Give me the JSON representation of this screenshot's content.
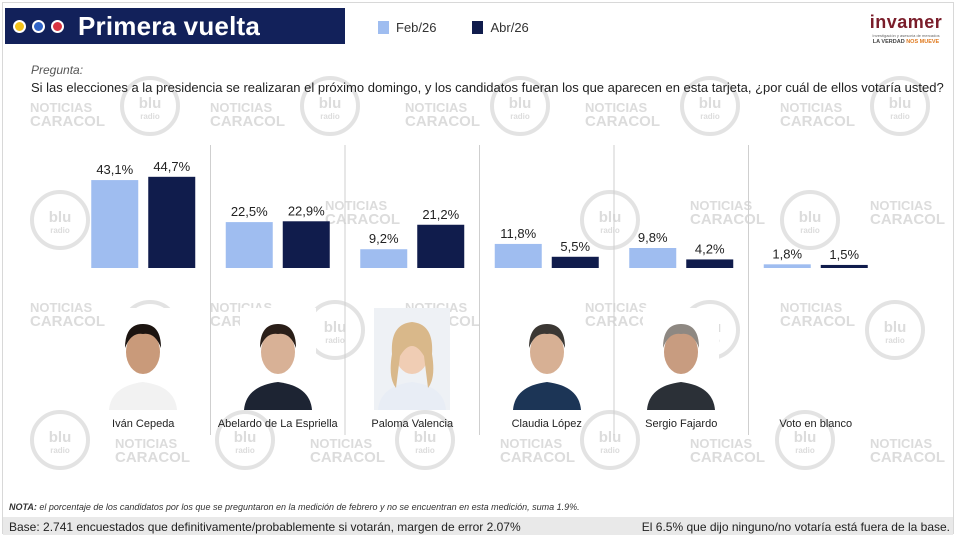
{
  "header": {
    "title": "Primera vuelta",
    "dot_colors": [
      "#f3c21a",
      "#2f63c7",
      "#d9333f"
    ]
  },
  "logo": {
    "name": "invamer",
    "subtitle": "Investigación y asesoría de mercados",
    "tagline_a": "LA VERDAD",
    "tagline_b": "NOS MUEVE"
  },
  "question": {
    "label": "Pregunta:",
    "text": "Si las elecciones a la presidencia se realizaran el próximo domingo, y los candidatos fueran los que aparecen en esta tarjeta, ¿por cuál de ellos votaría usted?"
  },
  "colors": {
    "feb": "#9fbdf0",
    "abr": "#101c4c",
    "title_bg": "#12215a"
  },
  "chart_data": {
    "type": "bar",
    "categories": [
      "Iván Cepeda",
      "Abelardo de La Espriella",
      "Paloma Valencia",
      "Claudia López",
      "Sergio Fajardo",
      "Voto en blanco"
    ],
    "series": [
      {
        "name": "Feb/26",
        "values": [
          43.1,
          22.5,
          9.2,
          11.8,
          9.8,
          1.8
        ],
        "labels": [
          "43,1%",
          "22,5%",
          "9,2%",
          "11,8%",
          "9,8%",
          "1,8%"
        ]
      },
      {
        "name": "Abr/26",
        "values": [
          44.7,
          22.9,
          21.2,
          5.5,
          4.2,
          1.5
        ],
        "labels": [
          "44,7%",
          "22,9%",
          "21,2%",
          "5,5%",
          "4,2%",
          "1,5%"
        ]
      }
    ],
    "legend_position": "top",
    "grid": false
  },
  "footer": {
    "nota_label": "NOTA:",
    "nota_text": " el porcentaje de los candidatos por los que se preguntaron en la medición de febrero y no se encuentran en esta medición, suma 1.9%.",
    "base_left": "Base: 2.741 encuestados que definitivamente/probablemente si votarán, margen de error 2.07%",
    "base_right": "El 6.5% que dijo ninguno/no votaría está fuera de la base."
  },
  "watermarks": {
    "brand_a": "NOTICIAS",
    "brand_b": "CARACOL",
    "radio_a": "blu",
    "radio_b": "radio"
  }
}
